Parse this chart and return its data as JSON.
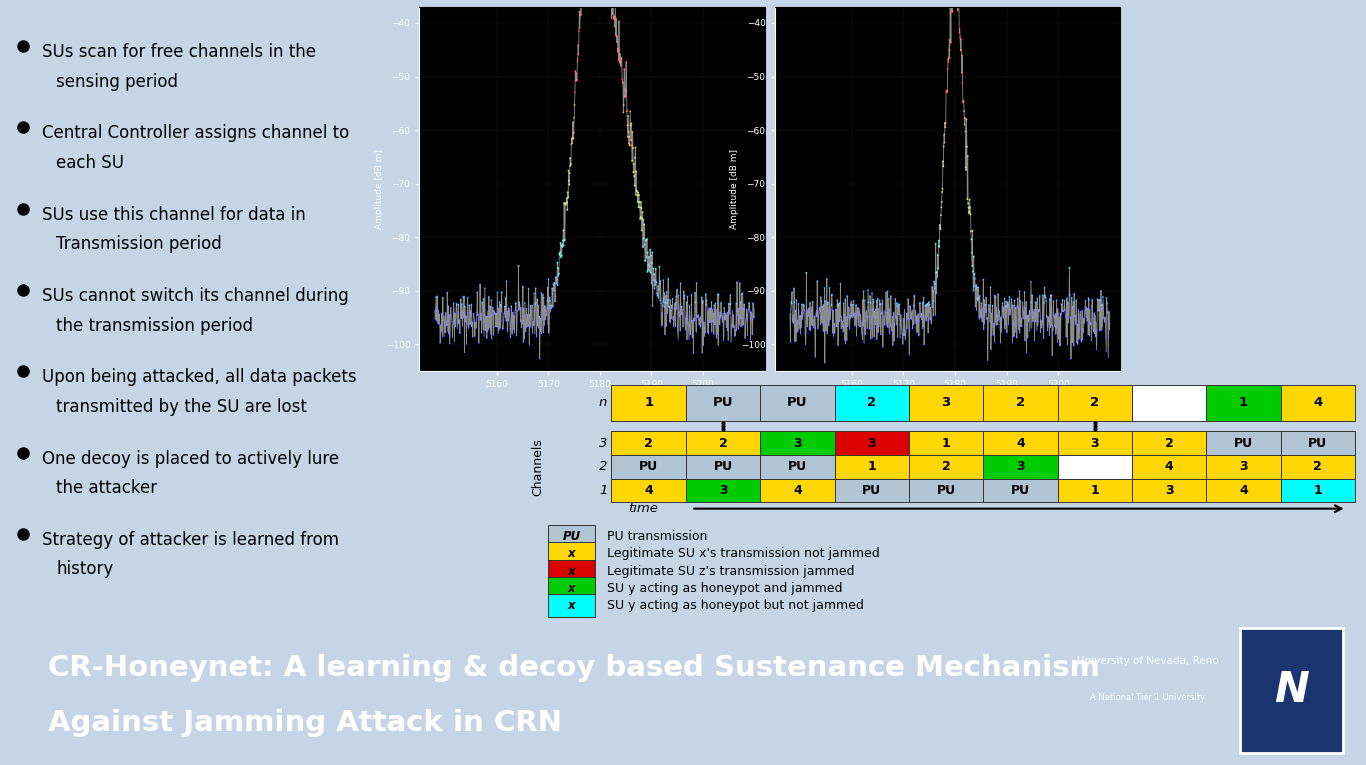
{
  "slide_bg": "#c5d5e5",
  "footer_bg": "#0d1f3c",
  "footer_text_line1": "CR-Honeynet: A learning & decoy based Sustenance Mechanism",
  "footer_text_line2": "Against Jamming Attack in CRN",
  "footer_fontsize": 21,
  "footer_color": "#ffffff",
  "bullet_points": [
    [
      "SUs scan for free channels in the",
      "sensing period"
    ],
    [
      "Central Controller assigns channel to",
      "each SU"
    ],
    [
      "SUs use this channel for data in",
      "Transmission period"
    ],
    [
      "SUs cannot switch its channel during",
      "the transmission period"
    ],
    [
      "Upon being attacked, all data packets",
      "transmitted by the SU are lost"
    ],
    [
      "One decoy is placed to actively lure",
      "the attacker"
    ],
    [
      "Strategy of attacker is learned from",
      "history"
    ]
  ],
  "bullet_fontsize": 12,
  "bullet_color": "#000000",
  "table_title_row_labels": [
    "n",
    "1",
    "PU",
    "PU",
    "2",
    "3",
    "2",
    "2",
    "",
    "1",
    "4"
  ],
  "table_title_row_colors": [
    "none",
    "yellow",
    "lgray",
    "lgray",
    "cyan",
    "yellow",
    "yellow",
    "yellow",
    "white",
    "green",
    "yellow"
  ],
  "table_rows": [
    {
      "channel": "3",
      "cells": [
        "2",
        "2",
        "3",
        "3",
        "1",
        "4",
        "3",
        "2",
        "PU",
        "PU"
      ],
      "colors": [
        "yellow",
        "yellow",
        "green",
        "red",
        "yellow",
        "yellow",
        "yellow",
        "yellow",
        "lgray",
        "lgray"
      ]
    },
    {
      "channel": "2",
      "cells": [
        "PU",
        "PU",
        "PU",
        "1",
        "2",
        "3",
        "",
        "4",
        "3",
        "2"
      ],
      "colors": [
        "lgray",
        "lgray",
        "lgray",
        "yellow",
        "yellow",
        "green",
        "white",
        "yellow",
        "yellow",
        "yellow"
      ]
    },
    {
      "channel": "1",
      "cells": [
        "4",
        "3",
        "4",
        "PU",
        "PU",
        "PU",
        "1",
        "3",
        "4",
        "1"
      ],
      "colors": [
        "yellow",
        "green",
        "yellow",
        "lgray",
        "lgray",
        "lgray",
        "yellow",
        "yellow",
        "yellow",
        "cyan"
      ]
    }
  ],
  "legend_items": [
    {
      "color": "lgray",
      "label": "PU transmission",
      "text": "PU"
    },
    {
      "color": "yellow",
      "label": "Legitimate SU x's transmission not jammed",
      "text": "x"
    },
    {
      "color": "red",
      "label": "Legitimate SU z's transmission jammed",
      "text": "x"
    },
    {
      "color": "green",
      "label": "SU y acting as honeypot and jammed",
      "text": "x"
    },
    {
      "color": "cyan",
      "label": "SU y acting as honeypot but not jammed",
      "text": "x"
    }
  ],
  "channels_label": "Channels",
  "time_label": "time",
  "color_map": {
    "yellow": "#FFD700",
    "lgray": "#b0c4d4",
    "cyan": "#00FFFF",
    "green": "#00CC00",
    "red": "#DD0000",
    "white": "#FFFFFF",
    "none": "none"
  }
}
